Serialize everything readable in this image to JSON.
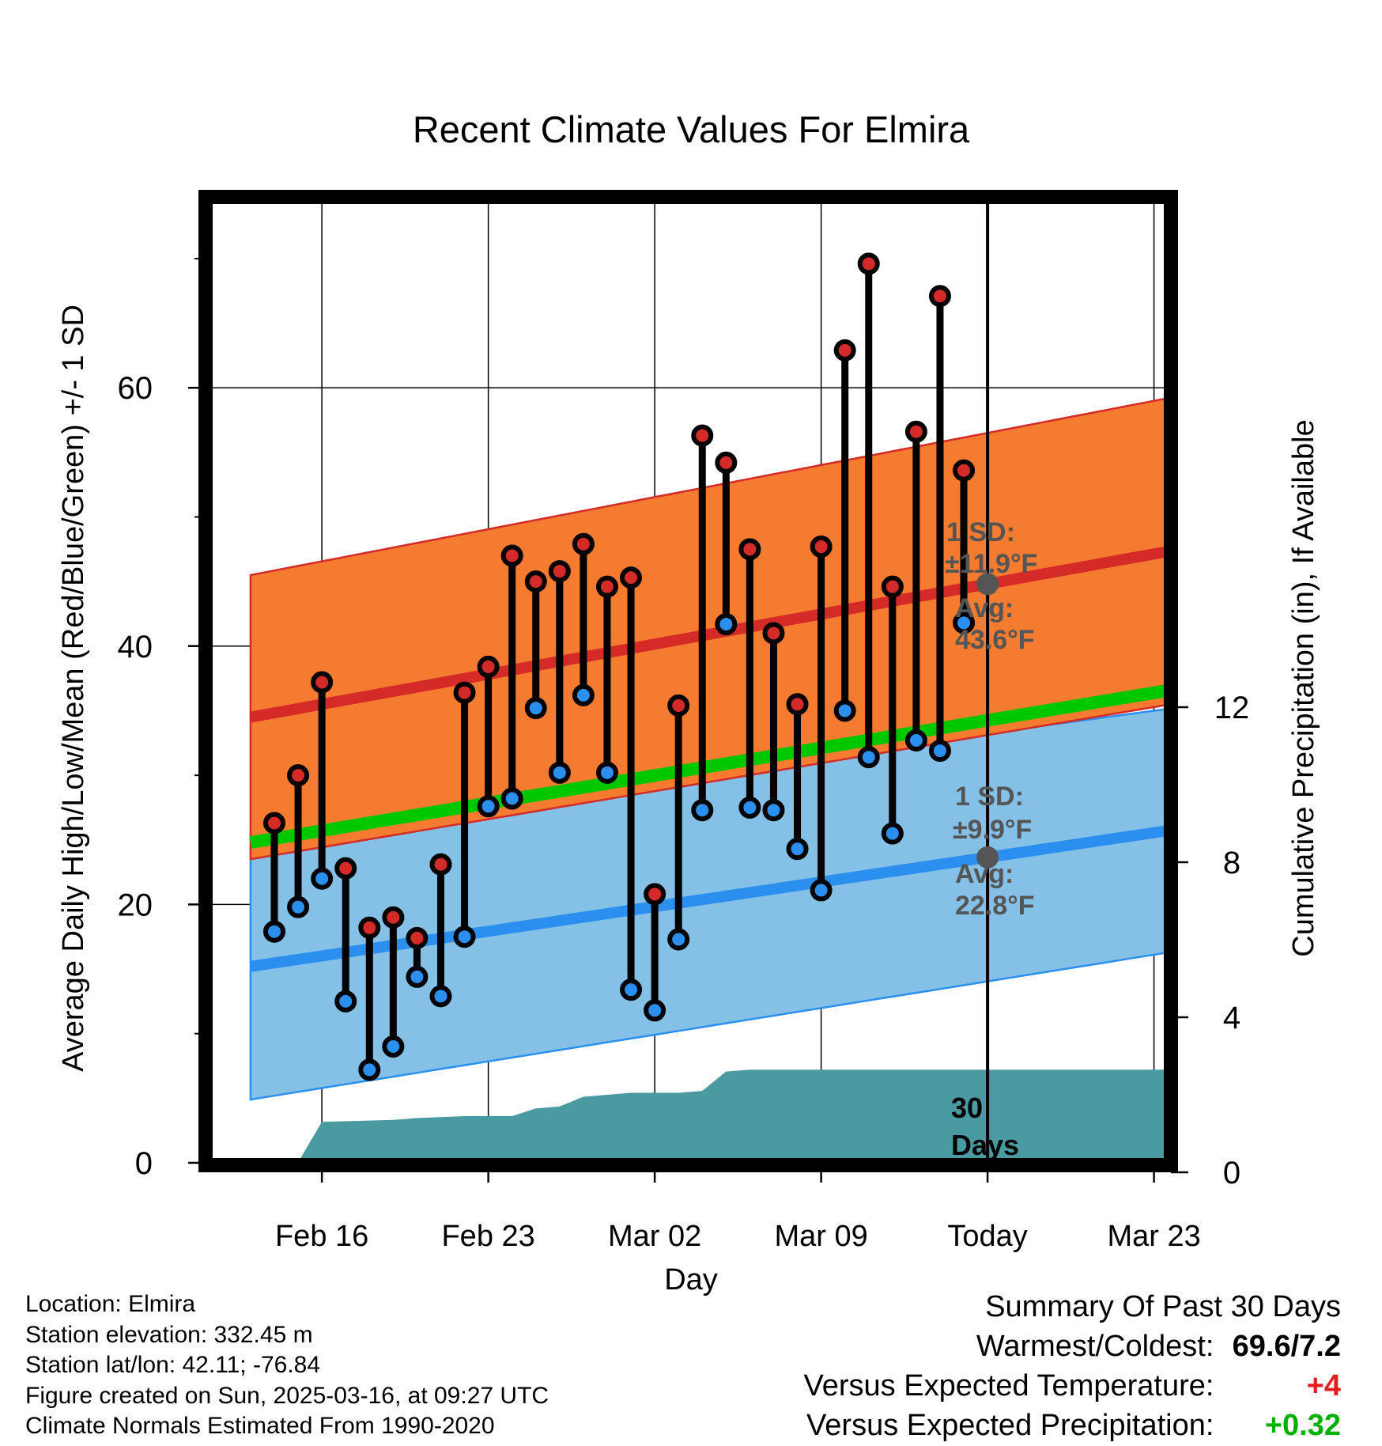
{
  "chart_data": {
    "type": "line",
    "title": "Recent Climate Values For Elmira",
    "xlabel": "Day",
    "ylabel": "Average Daily High/Low/Mean (Red/Blue/Green) +/- 1 SD",
    "y2label": "Cumulative Precipitation (in), If Available",
    "xticks": [
      {
        "day": 2,
        "label": "Feb 16"
      },
      {
        "day": 9,
        "label": "Feb 23"
      },
      {
        "day": 16,
        "label": "Mar 02"
      },
      {
        "day": 23,
        "label": "Mar 09"
      },
      {
        "day": 30,
        "label": "Today"
      },
      {
        "day": 37,
        "label": "Mar 23"
      }
    ],
    "xlim": [
      -1,
      39
    ],
    "ylim": [
      0,
      75
    ],
    "yticks": [
      0,
      20,
      40,
      60
    ],
    "y2lim": [
      0,
      16
    ],
    "y2ticks": [
      0,
      4,
      8,
      12
    ],
    "grid": true,
    "today_day": 30,
    "period_label": "30 Days",
    "colors": {
      "high_band": "#f47b30",
      "high_avg": "#d42a28",
      "low_band": "#85c1e6",
      "low_avg": "#2b8ff0",
      "mean": "#00c800",
      "precip": "#4a9aa2",
      "high_point": "#d42a28",
      "low_point": "#2b8ff0",
      "avg_marker": "#555555"
    },
    "normals": {
      "days": [
        -1,
        39
      ],
      "high_avg": [
        34.5,
        47.8
      ],
      "high_sd": [
        11.0,
        11.9
      ],
      "low_avg": [
        15.2,
        26.1
      ],
      "low_sd": [
        10.3,
        9.4
      ],
      "mean": [
        24.8,
        37.0
      ]
    },
    "days": [
      0,
      1,
      2,
      3,
      4,
      5,
      6,
      7,
      8,
      9,
      10,
      11,
      12,
      13,
      14,
      15,
      16,
      17,
      18,
      19,
      20,
      21,
      22,
      23,
      24,
      25,
      26,
      27,
      28,
      29
    ],
    "highs": [
      26.3,
      30.0,
      37.2,
      22.8,
      18.2,
      19.0,
      17.4,
      23.1,
      36.4,
      38.4,
      47.0,
      45.0,
      45.8,
      47.9,
      44.6,
      45.3,
      20.8,
      35.4,
      56.3,
      54.2,
      47.5,
      41.0,
      35.5,
      47.7,
      62.9,
      69.6,
      44.6,
      56.6,
      67.1,
      53.6
    ],
    "lows": [
      17.9,
      19.8,
      22.0,
      12.5,
      7.2,
      9.0,
      14.4,
      12.9,
      17.5,
      27.6,
      28.2,
      35.2,
      30.2,
      36.2,
      30.2,
      13.4,
      11.8,
      17.3,
      27.3,
      41.7,
      27.5,
      27.3,
      24.3,
      21.1,
      35.0,
      31.4,
      25.5,
      32.7,
      31.9,
      41.8
    ],
    "precip_cumulative": {
      "days": [
        -0.6,
        0.8,
        2.0,
        5.0,
        6.0,
        8.0,
        9.0,
        10.0,
        11.0,
        12.0,
        13.0,
        14.0,
        15.0,
        16.0,
        17.0,
        18.0,
        19.0,
        20.0,
        30.0,
        39.0
      ],
      "values": [
        0.0,
        0.05,
        1.3,
        1.35,
        1.4,
        1.45,
        1.45,
        1.45,
        1.65,
        1.7,
        1.95,
        2.0,
        2.05,
        2.05,
        2.05,
        2.1,
        2.6,
        2.65,
        2.65,
        2.65
      ]
    },
    "annotations": {
      "high_sd_label": "1 SD:",
      "high_sd_value": "±11.9°F",
      "high_avg_label": "Avg:",
      "high_avg_value": "43.6°F",
      "low_sd_label": "1 SD:",
      "low_sd_value": "±9.9°F",
      "low_avg_label": "Avg:",
      "low_avg_value": "22.8°F"
    }
  },
  "info": {
    "location": "Location: Elmira",
    "elevation": "Station elevation: 332.45 m",
    "latlon": "Station lat/lon: 42.11; -76.84",
    "created": "Figure created on Sun, 2025-03-16, at 09:27 UTC",
    "normals": "Climate Normals Estimated From 1990-2020"
  },
  "summary": {
    "title": "Summary Of Past 30 Days",
    "warm_cold_label": "Warmest/Coldest:",
    "warm_cold_value": "69.6/7.2",
    "temp_label": "Versus Expected Temperature:",
    "temp_value": "+4",
    "temp_color": "#e02020",
    "precip_label": "Versus Expected Precipitation:",
    "precip_value": "+0.32",
    "precip_color": "#00b000"
  }
}
